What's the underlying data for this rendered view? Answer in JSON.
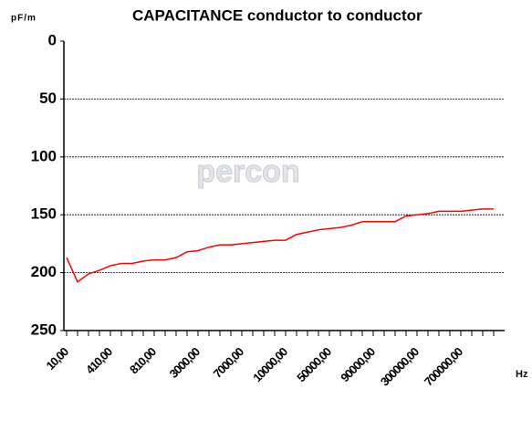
{
  "chart_data": {
    "type": "line",
    "title": "CAPACITANCE conductor to conductor",
    "y_label": "pF/m",
    "x_label": "Hz",
    "watermark": "percon",
    "categories": [
      "10,00",
      null,
      null,
      null,
      "410,00",
      null,
      null,
      null,
      "810,00",
      null,
      null,
      null,
      "3000,00",
      null,
      null,
      null,
      "7000,00",
      null,
      null,
      null,
      "10000,00",
      null,
      null,
      null,
      "50000,00",
      null,
      null,
      null,
      "90000,00",
      null,
      null,
      null,
      "300000,00",
      null,
      null,
      null,
      "700000,00",
      null,
      null,
      null
    ],
    "series": [
      {
        "name": "capacitance",
        "color": "#ff0000",
        "values": [
          187,
          208,
          201,
          198,
          194,
          192,
          192,
          190,
          189,
          189,
          187,
          182,
          181,
          178,
          176,
          176,
          175,
          174,
          173,
          172,
          172,
          167,
          165,
          163,
          162,
          161,
          159,
          156,
          156,
          156,
          156,
          151,
          150,
          149,
          147,
          147,
          147,
          146,
          145,
          145
        ]
      }
    ],
    "ylim": [
      0,
      250
    ],
    "yticks": [
      0,
      50,
      100,
      150,
      200,
      250
    ],
    "y_inverted": true,
    "grid": true
  }
}
